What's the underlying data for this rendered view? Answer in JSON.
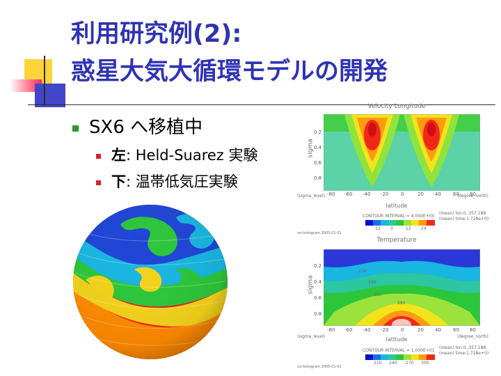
{
  "title": {
    "line1": "利用研究例(2):",
    "line2": "惑星大気大循環モデルの開発"
  },
  "bullets": {
    "main": "SX6 へ移植中",
    "sub": [
      {
        "key": "左",
        "text": ": Held-Suarez 実験"
      },
      {
        "key": "下",
        "text": ": 温帯低気圧実験"
      }
    ]
  },
  "plots": {
    "top": {
      "title": "Velocity Longitude",
      "ylabel": "sigma",
      "yticks": [
        "0.2",
        "0.4",
        "0.6",
        "0.8"
      ],
      "xticks": [
        "-80",
        "-60",
        "-40",
        "-20",
        "0",
        "20",
        "40",
        "60",
        "80"
      ],
      "xlabel": "latitude",
      "left_caption": "(sigma_level)",
      "right_caption": "(degree_north)",
      "contour_label": "CONTOUR INTERVAL = 4.000E+00",
      "mean1": "(mean) lon:0.,357.188",
      "mean2": "(mean) time:1.728e+0)",
      "colorbar_ticks": [
        "-12",
        "0",
        "12",
        "24"
      ],
      "footer": "vo:histogram  2005-01-01"
    },
    "bottom": {
      "title": "Temperature",
      "ylabel": "sigma",
      "yticks": [
        "0.2",
        "0.4",
        "0.6",
        "0.8"
      ],
      "xticks": [
        "-80",
        "-60",
        "-40",
        "-20",
        "0",
        "20",
        "40",
        "60",
        "80"
      ],
      "xlabel": "latitude",
      "left_caption": "(sigma_level)",
      "right_caption": "(degree_north)",
      "contour_label": "CONTOUR INTERVAL = 1.000E+01",
      "mean1": "(mean) lon:0.,357.188",
      "mean2": "(mean) time:1.728e+0)",
      "colorbar_ticks": [
        "210",
        "240",
        "270",
        "300"
      ],
      "contour_labels": [
        "230",
        "240",
        "260",
        "280"
      ],
      "footer": "vo:histogram  2005-01-01"
    }
  },
  "colors": {
    "title": "#2f33b4",
    "bullet_main": "#2a9b2a",
    "bullet_sub": "#d8202a"
  }
}
